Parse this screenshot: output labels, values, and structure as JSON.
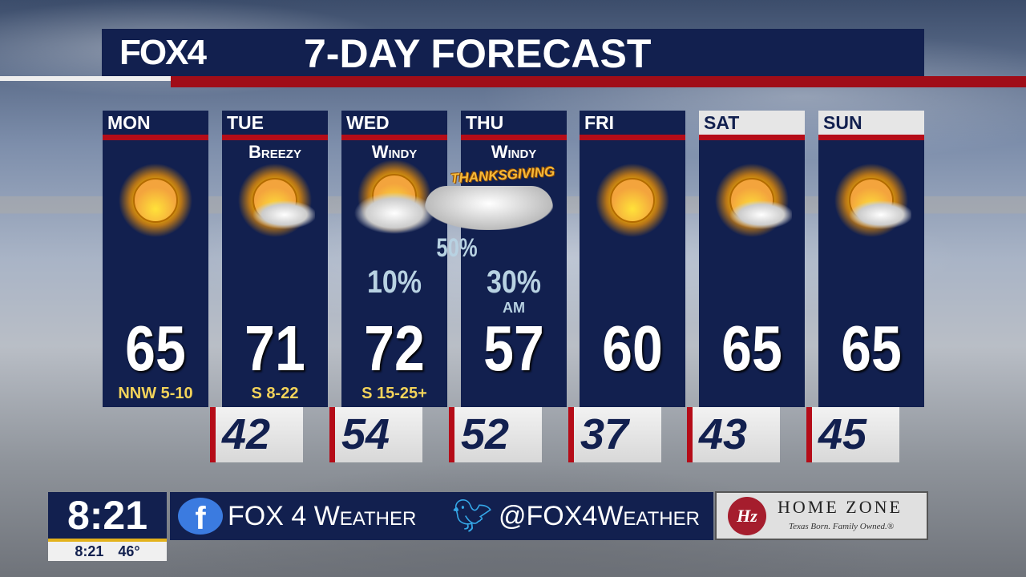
{
  "header": {
    "logo": "FOX4",
    "title": "7-DAY FORECAST"
  },
  "days": [
    {
      "day": "MON",
      "condition": "",
      "icon": "sunny-icon",
      "pop": "",
      "pop_note": "",
      "high": "65",
      "wind": "NNW 5-10",
      "low": "42",
      "weekend": false
    },
    {
      "day": "TUE",
      "condition": "Breezy",
      "icon": "partly-cloudy-icon",
      "pop": "",
      "pop_note": "",
      "high": "71",
      "wind": "S 8-22",
      "low": "54",
      "weekend": false
    },
    {
      "day": "WED",
      "condition": "Windy",
      "icon": "mostly-cloudy-icon",
      "pop": "10%",
      "pop_note": "",
      "high": "72",
      "wind": "S 15-25+",
      "low": "52",
      "weekend": false
    },
    {
      "day": "THU",
      "condition": "Windy",
      "icon": "rain-cloud-icon",
      "pop": "30%",
      "pop_note": "AM",
      "high": "57",
      "wind": "",
      "low": "37",
      "weekend": false
    },
    {
      "day": "FRI",
      "condition": "",
      "icon": "sunny-icon",
      "pop": "",
      "pop_note": "",
      "high": "60",
      "wind": "",
      "low": "43",
      "weekend": false
    },
    {
      "day": "SAT",
      "condition": "",
      "icon": "partly-cloudy-icon",
      "pop": "",
      "pop_note": "",
      "high": "65",
      "wind": "",
      "low": "45",
      "weekend": true
    },
    {
      "day": "SUN",
      "condition": "",
      "icon": "partly-cloudy-icon",
      "pop": "",
      "pop_note": "",
      "high": "65",
      "wind": "",
      "low": "",
      "weekend": true
    }
  ],
  "overlay": {
    "holiday": "THANKSGIVING",
    "overnight_pop": "50%"
  },
  "ticker": {
    "clock": "8:21",
    "time": "8:21",
    "temp": "46°",
    "facebook": "FOX 4 Weather",
    "twitter": "@FOX4Weather"
  },
  "sponsor": {
    "logo": "Hz",
    "name": "HOME ZONE",
    "tagline": "Texas Born. Family Owned.®"
  },
  "colors": {
    "navy": "#12204f",
    "red": "#b50c18",
    "wind": "#f3d35a",
    "pop": "#b8d2e2"
  }
}
